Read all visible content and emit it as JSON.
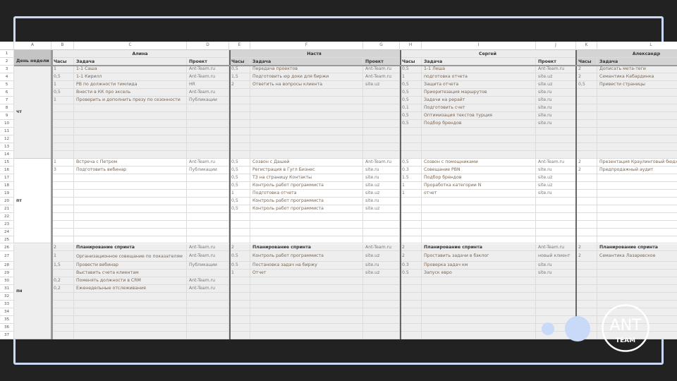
{
  "columns": [
    "A",
    "B",
    "C",
    "D",
    "E",
    "F",
    "G",
    "H",
    "I",
    "J",
    "K",
    "L"
  ],
  "row_count": 37,
  "header": {
    "day_label": "День недели",
    "people": [
      {
        "name": "Алина",
        "hours": "Часы",
        "task": "Задача",
        "project": "Проект"
      },
      {
        "name": "Настя",
        "hours": "Часы",
        "task": "Задача",
        "project": "Проект"
      },
      {
        "name": "Сергей",
        "hours": "Часы",
        "task": "Задача",
        "project": "Проект"
      },
      {
        "name": "Александр",
        "hours": "Часы",
        "task": "Задача"
      }
    ]
  },
  "days": [
    {
      "label": "чт",
      "from": 3,
      "to": 14
    },
    {
      "label": "пт",
      "from": 15,
      "to": 25
    },
    {
      "label": "пн",
      "from": 26,
      "to": 37
    }
  ],
  "rows": {
    "3": [
      "1",
      "1-1 Саша",
      "Ant-Team.ru",
      "0,5",
      "Передача проектов",
      "Ant-Team.ru",
      "0,5",
      "1-1 Леша",
      "Ant-Team.ru",
      "2",
      "Дописать мета-теги"
    ],
    "4": [
      "0,5",
      "1-1 Кирилл",
      "Ant-Team.ru",
      "1,5",
      "Подготовить юр доки для биржи",
      "Ant-Team.ru",
      "1",
      "подготовка отчета",
      "site.uz",
      "2",
      "Семантика Кабардинка"
    ],
    "5": [
      "1",
      "PB по должности тимлида",
      "HR",
      "2",
      "Ответить на вопросы клиента",
      "site.uz",
      "0,5",
      "Защита отчета",
      "site.uz",
      "0,5",
      "Привести страницы"
    ],
    "6": [
      "0,5",
      "Внести в КК про эксель",
      "Ant-Team.ru",
      "",
      "",
      "",
      "0,5",
      "Приоритезация маршрутов",
      "site.ru",
      "",
      ""
    ],
    "7": [
      "1",
      "Проверить и дополнить презу по сезонности",
      "Публикации",
      "",
      "",
      "",
      "0,5",
      "Задачи на рерайт",
      "site.ru",
      "",
      ""
    ],
    "8": [
      "",
      "",
      "",
      "",
      "",
      "",
      "0,1",
      "Подготовить счет",
      "site.ru",
      "",
      ""
    ],
    "9": [
      "",
      "",
      "",
      "",
      "",
      "",
      "0,5",
      "Оптимизация текстов турция",
      "site.ru",
      "",
      ""
    ],
    "10": [
      "",
      "",
      "",
      "",
      "",
      "",
      "0,5",
      "Подбор брендов",
      "site.ru",
      "",
      ""
    ],
    "15": [
      "1",
      "Встреча с Петром",
      "Ant-Team.ru",
      "0,5",
      "Созвон с Дашей",
      "Ant-Team.ru",
      "0,5",
      "Созвон с помощниками",
      "Ant-Team.ru",
      "2",
      "Презентация Краулинговый бюджет"
    ],
    "16": [
      "3",
      "Подготовить вебинар",
      "Публикации",
      "0,5",
      "Регистрация в Гугл Бизнес",
      "site.ru",
      "0.3",
      "Совещание PBN",
      "site.ru",
      "2",
      "Предпродажный аудит"
    ],
    "17": [
      "",
      "",
      "",
      "0,5",
      "ТЗ на страницу Контакты",
      "site.ru",
      "1.5",
      "Подбор брендов",
      "site.uz",
      "",
      ""
    ],
    "18": [
      "",
      "",
      "",
      "0,5",
      "Контроль работ программиста",
      "site.uz",
      "1",
      "Проработка категории N",
      "site.uz",
      "",
      ""
    ],
    "19": [
      "",
      "",
      "",
      "1",
      "Подготовка отчета",
      "site.uz",
      "1",
      "отчет",
      "site.ru",
      "",
      ""
    ],
    "20": [
      "",
      "",
      "",
      "0,5",
      "Контроль работ программиста",
      "site.ru",
      "",
      "",
      "",
      "",
      ""
    ],
    "21": [
      "",
      "",
      "",
      "0,5",
      "Контроль работ программиста",
      "site.uz",
      "",
      "",
      "",
      "",
      ""
    ],
    "26": [
      "2",
      "Планирование спринта",
      "Ant-Team.ru",
      "2",
      "Планирование спринта",
      "Ant-Team.ru",
      "2",
      "Планирование спринта",
      "Ant-Team.ru",
      "2",
      "Планирование спринта"
    ],
    "27": [
      "1",
      "Организационное совещание по показателям команды",
      "Ant-Team.ru",
      "0.5",
      "Контроль работ программиста",
      "site.uz",
      "2",
      "Проставить задачи в бэклог",
      "новый клиент",
      "2",
      "Семантика Лазаревское"
    ],
    "28": [
      "1,5",
      "Провести вебинар",
      "Публикации",
      "0.5",
      "Постановка задач на биржу",
      "site.ru",
      "0.3",
      "Проверка задач км",
      "site.ru",
      "",
      ""
    ],
    "29": [
      "",
      "Выставить счета клиентам",
      "",
      "1",
      "Отчет",
      "site.uz",
      "0.5",
      "Запуск евро",
      "site.ru",
      "",
      ""
    ],
    "30": [
      "0,2",
      "Поменять должности в CRM",
      "Ant-Team.ru",
      "",
      "",
      "",
      "",
      "",
      "",
      "",
      ""
    ],
    "31": [
      "0,2",
      "Еженедельные отслеживания",
      "Ant-Team.ru",
      "",
      "",
      "",
      "",
      "",
      "",
      "",
      ""
    ]
  },
  "logo": {
    "top": "ANT",
    "bottom": "TEAM"
  },
  "colors": {
    "background": "#222222",
    "frame": "#c9d8f5",
    "accent_dots": "#c9daf8",
    "task_text": "#7a6552"
  }
}
